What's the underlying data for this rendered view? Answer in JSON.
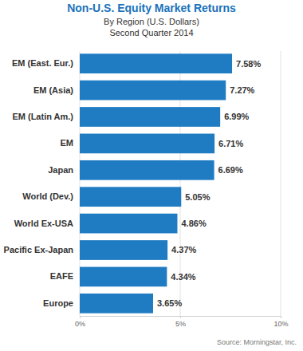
{
  "chart_data": {
    "type": "bar",
    "orientation": "horizontal",
    "title": "Non-U.S. Equity Market Returns",
    "subtitle": [
      "By Region (U.S. Dollars)",
      "Second Quarter 2014"
    ],
    "source": "Source: Morningstar, Inc.",
    "categories": [
      "EM (East. Eur.)",
      "EM (Asia)",
      "EM (Latin Am.)",
      "EM",
      "Japan",
      "World (Dev.)",
      "World Ex-USA",
      "Pacific Ex-Japan",
      "EAFE",
      "Europe"
    ],
    "values": [
      7.58,
      7.27,
      6.99,
      6.71,
      6.69,
      5.05,
      4.86,
      4.37,
      4.34,
      3.65
    ],
    "value_labels": [
      "7.58%",
      "7.27%",
      "6.99%",
      "6.71%",
      "6.69%",
      "5.05%",
      "4.86%",
      "4.37%",
      "4.34%",
      "3.65%"
    ],
    "data_labels": true,
    "color": "#1f7cc2",
    "xlim": [
      0,
      10
    ],
    "xticks": [
      {
        "value": 0,
        "label": "0%"
      },
      {
        "value": 5,
        "label": "5%"
      },
      {
        "value": 10,
        "label": "10%"
      }
    ],
    "grid": true
  }
}
